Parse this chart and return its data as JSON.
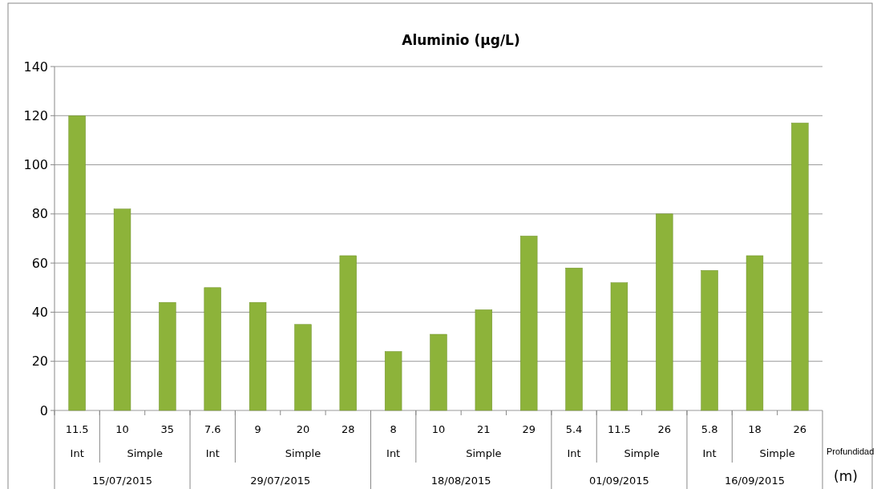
{
  "chart_data": {
    "type": "bar",
    "title": "Aluminio (µg/L)",
    "categories": [
      "11.5",
      "10",
      "35",
      "7.6",
      "9",
      "20",
      "28",
      "8",
      "10",
      "21",
      "29",
      "5.4",
      "11.5",
      "26",
      "5.8",
      "18",
      "26"
    ],
    "values": [
      120,
      82,
      44,
      50,
      44,
      35,
      63,
      24,
      31,
      41,
      71,
      58,
      52,
      80,
      57,
      63,
      117
    ],
    "color": "#8db33a",
    "ylim": [
      0,
      140
    ],
    "yticks": [
      0,
      20,
      40,
      60,
      80,
      100,
      120,
      140
    ],
    "grid": "y",
    "annotations": [
      "Int",
      "Simple",
      "15/07/2015",
      "Int",
      "Simple",
      "29/07/2015",
      "Int",
      "Simple",
      "18/08/2015",
      "Int",
      "Simple",
      "01/09/2015",
      "Int",
      "Simple",
      "16/09/2015",
      "Profundidad",
      "(m)"
    ]
  }
}
